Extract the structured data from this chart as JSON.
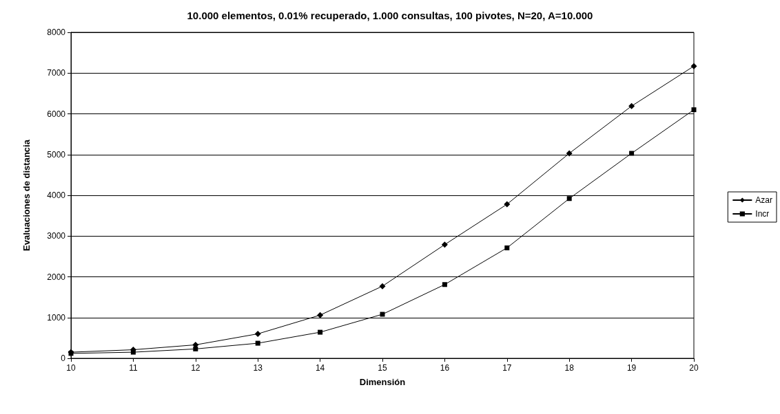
{
  "chart_data": {
    "type": "line",
    "title": "10.000 elementos, 0.01% recuperado, 1.000 consultas, 100 pivotes, N=20, A=10.000",
    "xlabel": "Dimensión",
    "ylabel": "Evaluaciones de distancia",
    "x": [
      10,
      11,
      12,
      13,
      14,
      15,
      16,
      17,
      18,
      19,
      20
    ],
    "series": [
      {
        "name": "Azar",
        "color": "#000000",
        "marker": "diamond",
        "values": [
          150,
          210,
          330,
          600,
          1060,
          1770,
          2790,
          3780,
          5030,
          6190,
          7170
        ]
      },
      {
        "name": "Incr",
        "color": "#000000",
        "marker": "square",
        "values": [
          120,
          150,
          230,
          370,
          640,
          1080,
          1810,
          2710,
          3920,
          5030,
          6100
        ]
      }
    ],
    "xlim": [
      10,
      20
    ],
    "xticks": [
      10,
      11,
      12,
      13,
      14,
      15,
      16,
      17,
      18,
      19,
      20
    ],
    "ylim": [
      0,
      8000
    ],
    "yticks": [
      0,
      1000,
      2000,
      3000,
      4000,
      5000,
      6000,
      7000,
      8000
    ],
    "grid": "y",
    "legend": "right",
    "line_style": "solid"
  }
}
